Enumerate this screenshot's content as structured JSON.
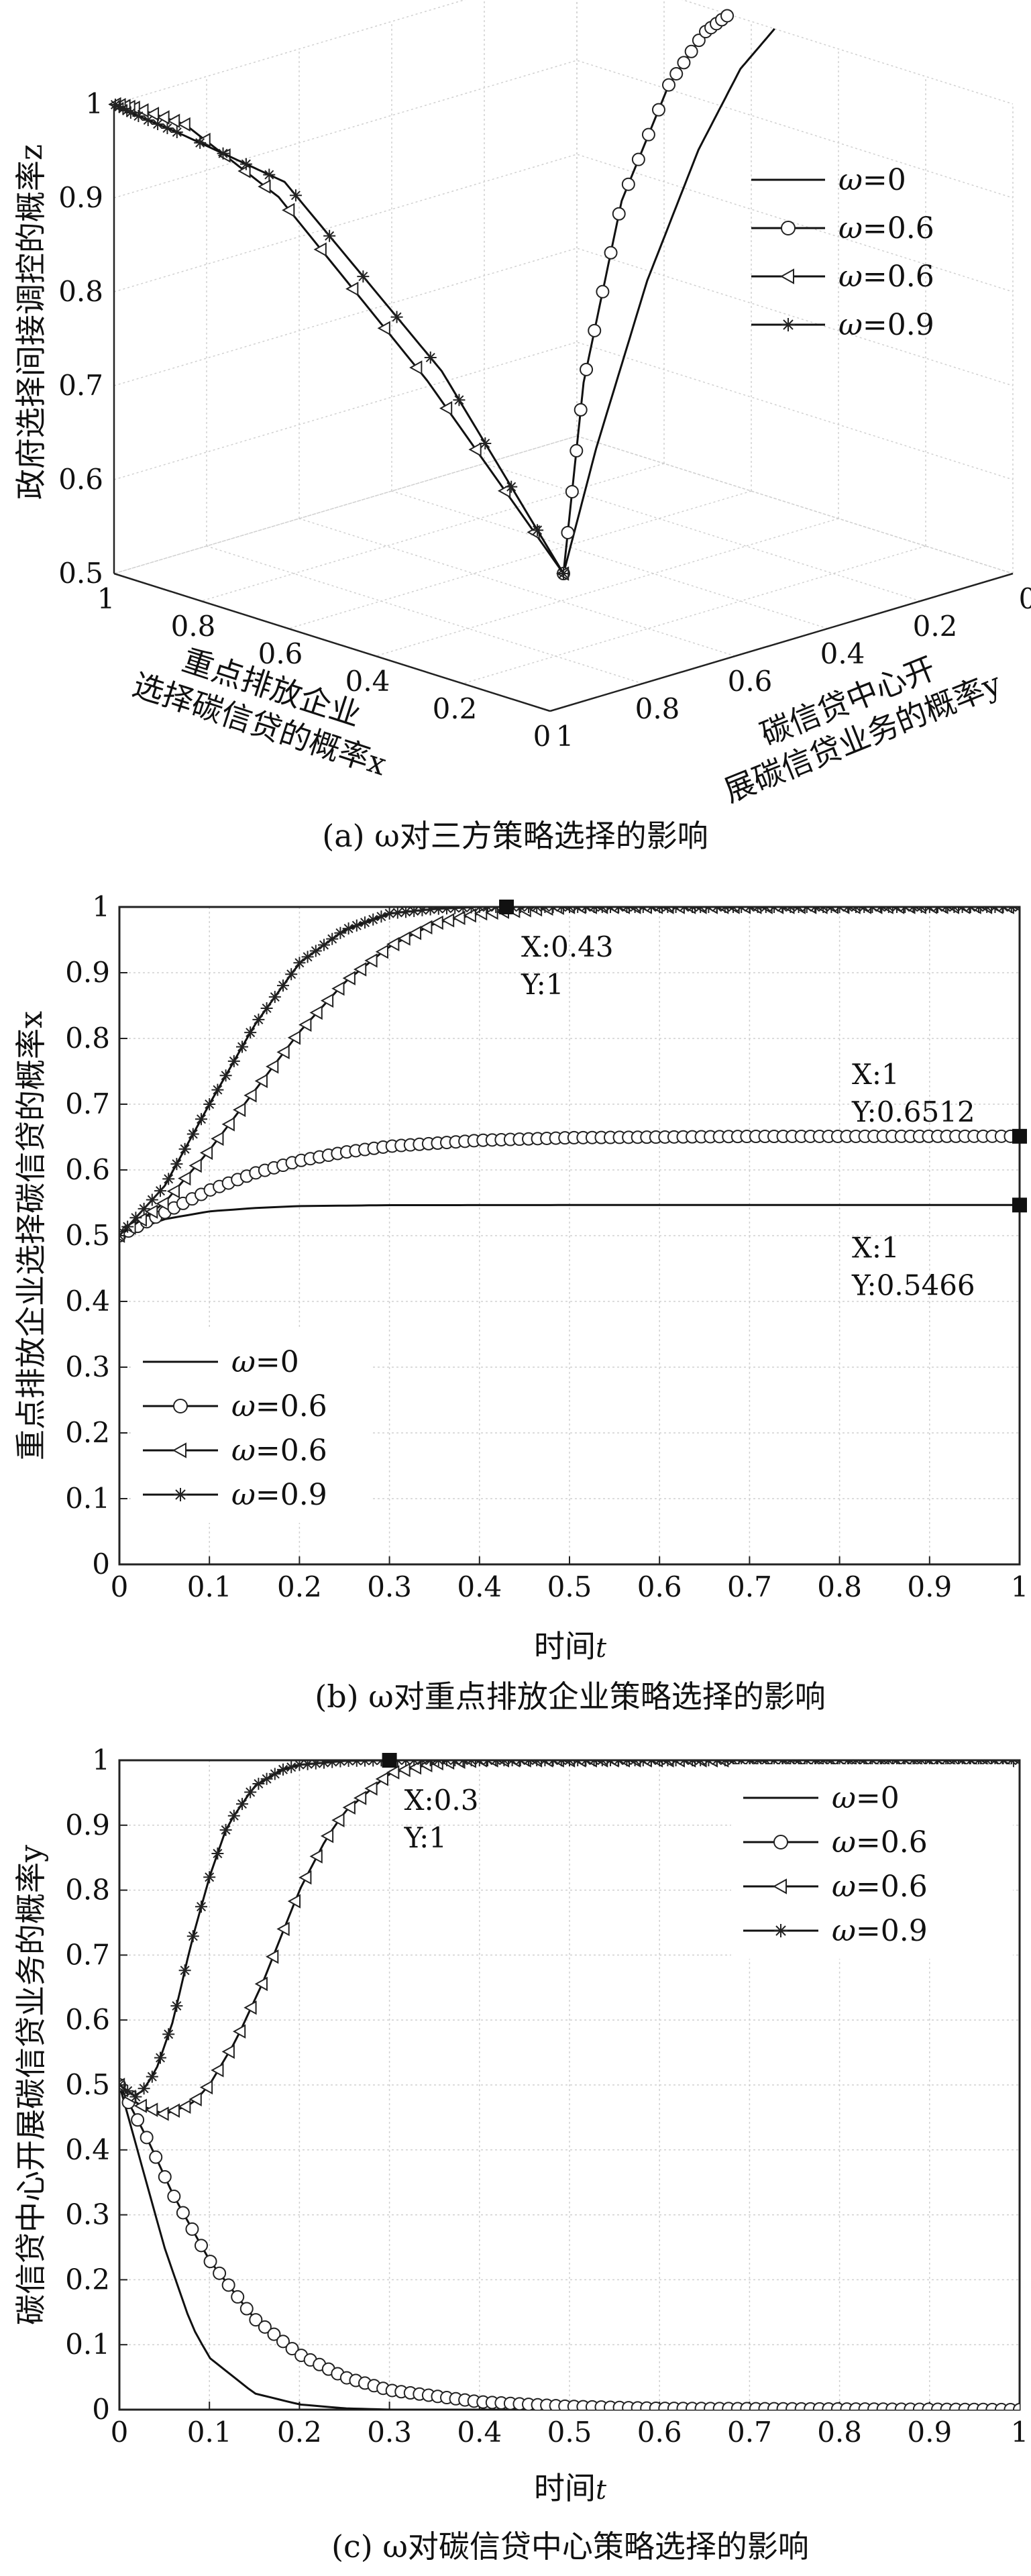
{
  "chart_data": [
    {
      "type": "line",
      "panel": "a",
      "caption": "(a) ω对三方策略选择的影响",
      "zlabel": "政府选择间接调控的概率z",
      "xlabel": "重点排放企业选择碳信贷的概率x",
      "ylabel": "碳信贷中心开展碳信贷业务的概率y",
      "x_ticks": [
        "1",
        "0.8",
        "0.6",
        "0.4",
        "0.2",
        "0"
      ],
      "y_ticks": [
        "1",
        "0.8",
        "0.6",
        "0.4",
        "0.2",
        "0"
      ],
      "z_ticks": [
        "0.5",
        "0.6",
        "0.7",
        "0.8",
        "0.9",
        "1"
      ],
      "xlim": [
        0,
        1
      ],
      "ylim": [
        0,
        1
      ],
      "zlim": [
        0.5,
        1
      ],
      "grid": true,
      "legend_position": "right",
      "series": [
        {
          "name": "ω=0",
          "marker": "none",
          "points": [
            [
              0.5,
              0.5,
              0.5
            ],
            [
              0.51,
              0.42,
              0.62
            ],
            [
              0.52,
              0.3,
              0.78
            ],
            [
              0.53,
              0.18,
              0.9
            ],
            [
              0.54,
              0.08,
              0.97
            ],
            [
              0.5466,
              0,
              1
            ]
          ]
        },
        {
          "name": "ω=0.6",
          "marker": "circle",
          "points": [
            [
              0.5,
              0.5,
              0.5
            ],
            [
              0.56,
              0.4,
              0.68
            ],
            [
              0.6,
              0.28,
              0.85
            ],
            [
              0.63,
              0.15,
              0.95
            ],
            [
              0.645,
              0.06,
              0.99
            ],
            [
              0.6512,
              0,
              1
            ]
          ]
        },
        {
          "name": "ω=0.6",
          "marker": "triangle-left",
          "points": [
            [
              0.5,
              0.5,
              0.5
            ],
            [
              0.6,
              0.7,
              0.72
            ],
            [
              0.75,
              0.88,
              0.92
            ],
            [
              0.88,
              0.96,
              0.99
            ],
            [
              0.96,
              0.99,
              1
            ],
            [
              1,
              1,
              1
            ]
          ]
        },
        {
          "name": "ω=0.9",
          "marker": "star",
          "points": [
            [
              0.5,
              0.5,
              0.5
            ],
            [
              0.62,
              0.65,
              0.72
            ],
            [
              0.8,
              0.82,
              0.92
            ],
            [
              0.93,
              0.93,
              0.97
            ],
            [
              0.98,
              0.98,
              0.99
            ],
            [
              1,
              1,
              1
            ]
          ]
        }
      ]
    },
    {
      "type": "line",
      "panel": "b",
      "caption": "(b) ω对重点排放企业策略选择的影响",
      "xlabel_main": "时间",
      "xlabel_var": "t",
      "ylabel": "重点排放企业选择碳信贷的概率x",
      "xlim": [
        0,
        1
      ],
      "ylim": [
        0,
        1
      ],
      "x_ticks": [
        "0",
        "0.1",
        "0.2",
        "0.3",
        "0.4",
        "0.5",
        "0.6",
        "0.7",
        "0.8",
        "0.9",
        "1"
      ],
      "y_ticks": [
        "0",
        "0.1",
        "0.2",
        "0.3",
        "0.4",
        "0.5",
        "0.6",
        "0.7",
        "0.8",
        "0.9",
        "1"
      ],
      "grid": true,
      "legend_position": "bottom-left",
      "series": [
        {
          "name": "ω=0",
          "marker": "none",
          "x": [
            0,
            0.05,
            0.1,
            0.15,
            0.2,
            0.3,
            0.5,
            1
          ],
          "y": [
            0.5,
            0.525,
            0.537,
            0.542,
            0.545,
            0.5464,
            0.5466,
            0.5466
          ]
        },
        {
          "name": "ω=0.6",
          "marker": "circle",
          "x": [
            0,
            0.05,
            0.1,
            0.15,
            0.2,
            0.25,
            0.3,
            0.4,
            0.5,
            0.7,
            1
          ],
          "y": [
            0.5,
            0.535,
            0.569,
            0.595,
            0.614,
            0.627,
            0.636,
            0.645,
            0.649,
            0.651,
            0.6512
          ]
        },
        {
          "name": "ω=0.6",
          "marker": "triangle-left",
          "x": [
            0,
            0.05,
            0.1,
            0.15,
            0.2,
            0.25,
            0.3,
            0.35,
            0.4,
            0.5,
            1
          ],
          "y": [
            0.5,
            0.55,
            0.63,
            0.72,
            0.81,
            0.885,
            0.94,
            0.975,
            0.99,
            1,
            1
          ]
        },
        {
          "name": "ω=0.9",
          "marker": "star",
          "x": [
            0,
            0.05,
            0.1,
            0.15,
            0.2,
            0.25,
            0.3,
            0.35,
            0.4,
            0.5,
            1
          ],
          "y": [
            0.5,
            0.575,
            0.7,
            0.82,
            0.915,
            0.965,
            0.99,
            0.997,
            1,
            1,
            1
          ]
        }
      ],
      "annotations": [
        {
          "x": 0.43,
          "y": 1,
          "label_x": "X:0.43",
          "label_y": "Y:1"
        },
        {
          "x": 1,
          "y": 0.6512,
          "label_x": "X:1",
          "label_y": "Y:0.6512"
        },
        {
          "x": 1,
          "y": 0.5466,
          "label_x": "X:1",
          "label_y": "Y:0.5466"
        }
      ]
    },
    {
      "type": "line",
      "panel": "c",
      "caption": "(c) ω对碳信贷中心策略选择的影响",
      "xlabel_main": "时间",
      "xlabel_var": "t",
      "ylabel": "碳信贷中心开展碳信贷业务的概率y",
      "xlim": [
        0,
        1
      ],
      "ylim": [
        0,
        1
      ],
      "x_ticks": [
        "0",
        "0.1",
        "0.2",
        "0.3",
        "0.4",
        "0.5",
        "0.6",
        "0.7",
        "0.8",
        "0.9",
        "1"
      ],
      "y_ticks": [
        "0",
        "0.1",
        "0.2",
        "0.3",
        "0.4",
        "0.5",
        "0.6",
        "0.7",
        "0.8",
        "0.9",
        "1"
      ],
      "grid": true,
      "legend_position": "top-right",
      "series": [
        {
          "name": "ω=0",
          "marker": "none",
          "x": [
            0,
            0.02,
            0.05,
            0.08,
            0.1,
            0.15,
            0.2,
            0.25,
            0.3,
            1
          ],
          "y": [
            0.5,
            0.4,
            0.25,
            0.13,
            0.08,
            0.025,
            0.008,
            0.002,
            0,
            0
          ]
        },
        {
          "name": "ω=0.6",
          "marker": "circle",
          "x": [
            0,
            0.03,
            0.06,
            0.1,
            0.15,
            0.2,
            0.25,
            0.3,
            0.4,
            0.5,
            0.6,
            1
          ],
          "y": [
            0.5,
            0.42,
            0.33,
            0.23,
            0.14,
            0.085,
            0.05,
            0.03,
            0.012,
            0.005,
            0.002,
            0
          ]
        },
        {
          "name": "ω=0.6",
          "marker": "triangle-left",
          "x": [
            0,
            0.02,
            0.05,
            0.08,
            0.1,
            0.13,
            0.16,
            0.2,
            0.23,
            0.25,
            0.3,
            0.35,
            0.4,
            1
          ],
          "y": [
            0.5,
            0.47,
            0.455,
            0.47,
            0.5,
            0.57,
            0.66,
            0.8,
            0.88,
            0.92,
            0.98,
            0.995,
            1,
            1
          ]
        },
        {
          "name": "ω=0.9",
          "marker": "star",
          "x": [
            0,
            0.02,
            0.04,
            0.06,
            0.08,
            0.1,
            0.12,
            0.15,
            0.18,
            0.2,
            0.25,
            0.3,
            1
          ],
          "y": [
            0.5,
            0.48,
            0.52,
            0.6,
            0.72,
            0.82,
            0.9,
            0.96,
            0.985,
            0.993,
            0.999,
            1,
            1
          ]
        }
      ],
      "annotations": [
        {
          "x": 0.3,
          "y": 1,
          "label_x": "X:0.3",
          "label_y": "Y:1"
        }
      ]
    }
  ]
}
